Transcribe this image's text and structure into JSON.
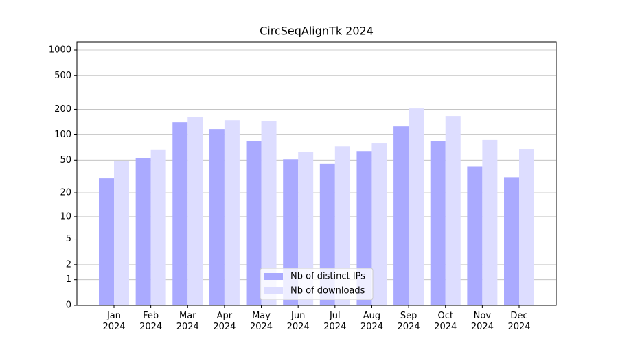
{
  "chart_data": {
    "type": "bar",
    "title": "CircSeqAlignTk 2024",
    "categories": [
      "Jan\n2024",
      "Feb\n2024",
      "Mar\n2024",
      "Apr\n2024",
      "May\n2024",
      "Jun\n2024",
      "Jul\n2024",
      "Aug\n2024",
      "Sep\n2024",
      "Oct\n2024",
      "Nov\n2024",
      "Dec\n2024"
    ],
    "series": [
      {
        "name": "Nb of distinct IPs",
        "color": "#aaaaff",
        "values": [
          30,
          53,
          141,
          117,
          84,
          51,
          45,
          64,
          126,
          84,
          42,
          31
        ]
      },
      {
        "name": "Nb of downloads",
        "color": "#ddddff",
        "values": [
          49,
          67,
          164,
          149,
          146,
          63,
          73,
          79,
          205,
          167,
          87,
          68
        ]
      }
    ],
    "yscale": "log1p",
    "ylim": [
      0,
      1250
    ],
    "yticks": [
      0,
      1,
      2,
      5,
      10,
      20,
      50,
      100,
      200,
      500,
      1000
    ],
    "grid": true,
    "legend": "lower center"
  }
}
